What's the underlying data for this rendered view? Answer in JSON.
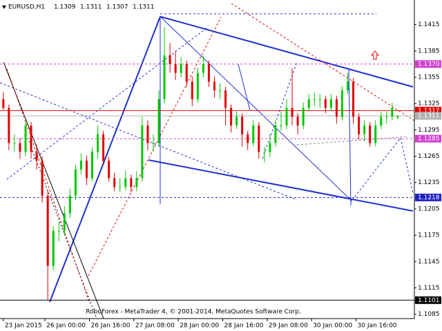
{
  "chart_data": {
    "type": "candlestick",
    "symbol": "EURUSD,H1",
    "header_values": [
      1.1309,
      1.1311,
      1.1307,
      1.1311
    ],
    "footer": "RoboForex - MetaTrader 4, © 2001-2014, MetaQuotes Software Corp.",
    "bull_color": "#00c800",
    "bear_color": "#e00000",
    "xlim": [
      -0.6,
      74
    ],
    "ylim": [
      1.108,
      1.1443
    ],
    "yticks": [
      1.1415,
      1.1385,
      1.1355,
      1.1325,
      1.1295,
      1.1265,
      1.1235,
      1.1205,
      1.1175,
      1.1145,
      1.1115,
      1.1085
    ],
    "xticks": [
      {
        "value": 0,
        "label": "23 Jan 2015"
      },
      {
        "value": 7.5,
        "label": "26 Jan 00:00"
      },
      {
        "value": 15.5,
        "label": "26 Jan 16:00"
      },
      {
        "value": 23.5,
        "label": "27 Jan 08:00"
      },
      {
        "value": 31.5,
        "label": "28 Jan 00:00"
      },
      {
        "value": 39.5,
        "label": "28 Jan 16:00"
      },
      {
        "value": 47.5,
        "label": "29 Jan 08:00"
      },
      {
        "value": 55.5,
        "label": "30 Jan 00:00"
      },
      {
        "value": 63.5,
        "label": "30 Jan 16:00"
      }
    ],
    "levels": [
      {
        "value": 1.137,
        "label": "1.1370",
        "color": "#d040d0",
        "dashed": true
      },
      {
        "value": 1.1317,
        "label": "1.1317",
        "color": "#e00000",
        "dashed": false
      },
      {
        "value": 1.1311,
        "label": "1.1311",
        "color": "#b0b0b0",
        "dashed": false
      },
      {
        "value": 1.1285,
        "label": "1.1285",
        "color": "#d040d0",
        "dashed": true
      },
      {
        "value": 1.1218,
        "label": "1.1218",
        "color": "#2020c0",
        "dashed": true
      },
      {
        "value": 1.1101,
        "label": "1.1101",
        "color": "#000000",
        "dashed": false
      }
    ],
    "candles": [
      [
        1.133,
        1.1338,
        1.1318,
        1.132
      ],
      [
        1.132,
        1.1324,
        1.1272,
        1.128
      ],
      [
        1.128,
        1.129,
        1.127,
        1.128
      ],
      [
        1.128,
        1.1286,
        1.1262,
        1.127
      ],
      [
        1.127,
        1.1305,
        1.1265,
        1.13
      ],
      [
        1.13,
        1.1304,
        1.1262,
        1.127
      ],
      [
        1.127,
        1.1278,
        1.125,
        1.126
      ],
      [
        1.126,
        1.1265,
        1.1212,
        1.122
      ],
      [
        1.122,
        1.1226,
        1.1101,
        1.114
      ],
      [
        1.114,
        1.1185,
        1.1135,
        1.118
      ],
      [
        1.118,
        1.119,
        1.1168,
        1.118
      ],
      [
        1.118,
        1.1208,
        1.1175,
        1.12
      ],
      [
        1.12,
        1.1228,
        1.1195,
        1.122
      ],
      [
        1.122,
        1.1255,
        1.1215,
        1.125
      ],
      [
        1.125,
        1.1268,
        1.1244,
        1.126
      ],
      [
        1.126,
        1.1266,
        1.1232,
        1.124
      ],
      [
        1.124,
        1.1275,
        1.1236,
        1.127
      ],
      [
        1.127,
        1.13,
        1.1262,
        1.129
      ],
      [
        1.129,
        1.1294,
        1.1255,
        1.126
      ],
      [
        1.126,
        1.1264,
        1.1236,
        1.124
      ],
      [
        1.124,
        1.1246,
        1.1225,
        1.123
      ],
      [
        1.123,
        1.124,
        1.1224,
        1.123
      ],
      [
        1.123,
        1.1248,
        1.1226,
        1.124
      ],
      [
        1.124,
        1.1244,
        1.1224,
        1.123
      ],
      [
        1.123,
        1.1248,
        1.1225,
        1.124
      ],
      [
        1.124,
        1.131,
        1.1236,
        1.13
      ],
      [
        1.13,
        1.1306,
        1.1272,
        1.128
      ],
      [
        1.128,
        1.129,
        1.127,
        1.128
      ],
      [
        1.128,
        1.134,
        1.1276,
        1.133
      ],
      [
        1.133,
        1.1412,
        1.1325,
        1.138
      ],
      [
        1.138,
        1.1394,
        1.136,
        1.137
      ],
      [
        1.137,
        1.1385,
        1.1352,
        1.136
      ],
      [
        1.136,
        1.1378,
        1.1355,
        1.137
      ],
      [
        1.137,
        1.1374,
        1.1344,
        1.135
      ],
      [
        1.135,
        1.1356,
        1.1322,
        1.133
      ],
      [
        1.133,
        1.1366,
        1.1326,
        1.136
      ],
      [
        1.136,
        1.138,
        1.1355,
        1.137
      ],
      [
        1.137,
        1.1374,
        1.1344,
        1.135
      ],
      [
        1.135,
        1.1356,
        1.1332,
        1.134
      ],
      [
        1.134,
        1.1348,
        1.133,
        1.134
      ],
      [
        1.134,
        1.1344,
        1.13,
        1.132
      ],
      [
        1.132,
        1.1324,
        1.1292,
        1.13
      ],
      [
        1.13,
        1.1316,
        1.1296,
        1.131
      ],
      [
        1.131,
        1.1314,
        1.1276,
        1.129
      ],
      [
        1.129,
        1.1294,
        1.1272,
        1.128
      ],
      [
        1.128,
        1.1306,
        1.1276,
        1.13
      ],
      [
        1.13,
        1.1304,
        1.1262,
        1.127
      ],
      [
        1.127,
        1.1276,
        1.1258,
        1.127
      ],
      [
        1.127,
        1.129,
        1.1264,
        1.128
      ],
      [
        1.128,
        1.1306,
        1.1276,
        1.13
      ],
      [
        1.13,
        1.1316,
        1.1294,
        1.13
      ],
      [
        1.13,
        1.133,
        1.1296,
        1.132
      ],
      [
        1.132,
        1.1365,
        1.13,
        1.131
      ],
      [
        1.131,
        1.1314,
        1.129,
        1.13
      ],
      [
        1.13,
        1.1326,
        1.1296,
        1.132
      ],
      [
        1.132,
        1.1336,
        1.1316,
        1.133
      ],
      [
        1.133,
        1.1338,
        1.1322,
        1.133
      ],
      [
        1.133,
        1.1336,
        1.132,
        1.133
      ],
      [
        1.133,
        1.1334,
        1.1314,
        1.132
      ],
      [
        1.132,
        1.1336,
        1.1316,
        1.133
      ],
      [
        1.133,
        1.1334,
        1.1302,
        1.131
      ],
      [
        1.131,
        1.1345,
        1.1306,
        1.134
      ],
      [
        1.134,
        1.136,
        1.1336,
        1.135
      ],
      [
        1.135,
        1.1354,
        1.1302,
        1.131
      ],
      [
        1.131,
        1.1314,
        1.1284,
        1.129
      ],
      [
        1.129,
        1.1306,
        1.1282,
        1.13
      ],
      [
        1.13,
        1.1304,
        1.1276,
        1.128
      ],
      [
        1.128,
        1.1306,
        1.1276,
        1.13
      ],
      [
        1.13,
        1.1316,
        1.1296,
        1.131
      ],
      [
        1.131,
        1.1316,
        1.1302,
        1.131
      ],
      [
        1.131,
        1.1326,
        1.1306,
        1.132
      ],
      [
        1.1309,
        1.1311,
        1.1307,
        1.1311
      ]
    ]
  }
}
